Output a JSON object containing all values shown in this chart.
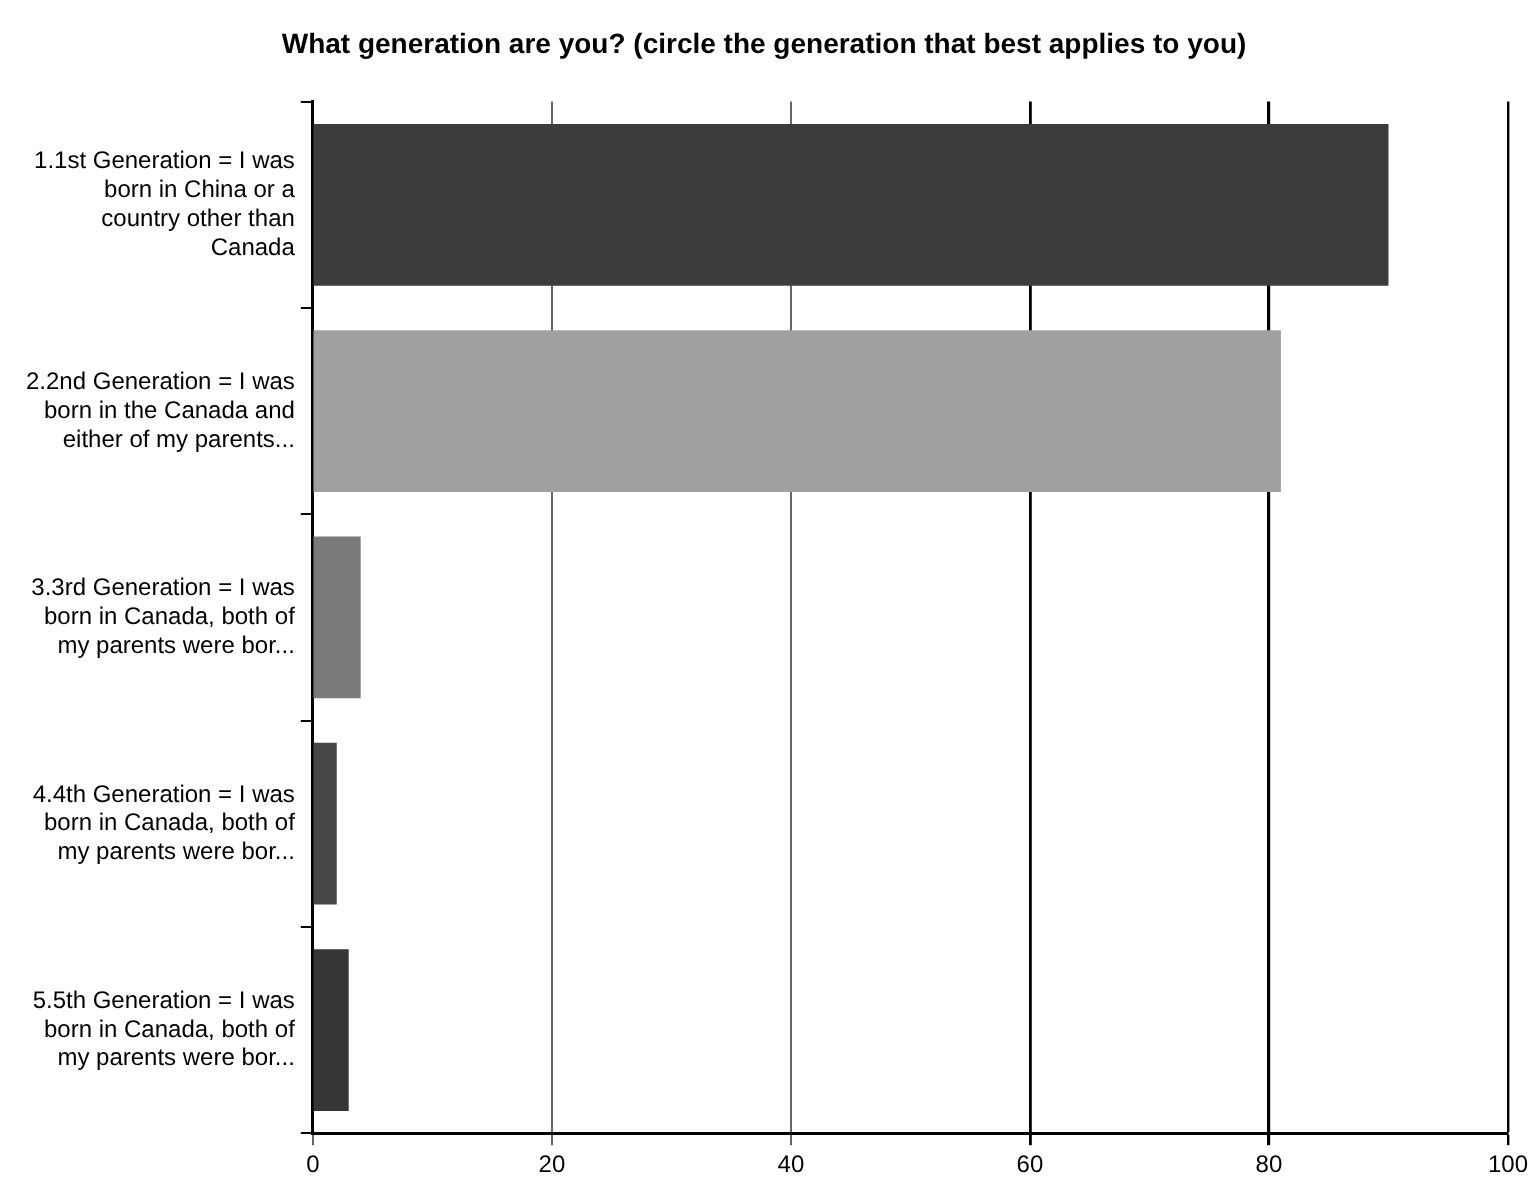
{
  "chart_data": {
    "type": "bar",
    "orientation": "horizontal",
    "title": "What generation are you? (circle the generation that best applies to you)",
    "categories": [
      "1.1st Generation = I was born in China or a country other than Canada",
      "2.2nd Generation = I was born in the Canada and either of my parents...",
      "3.3rd Generation = I was born in Canada, both of my parents were bor...",
      "4.4th Generation = I was born in Canada, both of my parents were bor...",
      "5.5th Generation = I was born in Canada, both of my parents were bor..."
    ],
    "values": [
      90,
      81,
      4,
      2,
      3
    ],
    "colors": [
      "#3c3c3c",
      "#a0a0a0",
      "#7a7a7a",
      "#474747",
      "#363636"
    ],
    "xlim": [
      0,
      100
    ],
    "xticks": [
      0,
      20,
      40,
      60,
      80,
      100
    ],
    "grid": "x",
    "legend": false
  }
}
